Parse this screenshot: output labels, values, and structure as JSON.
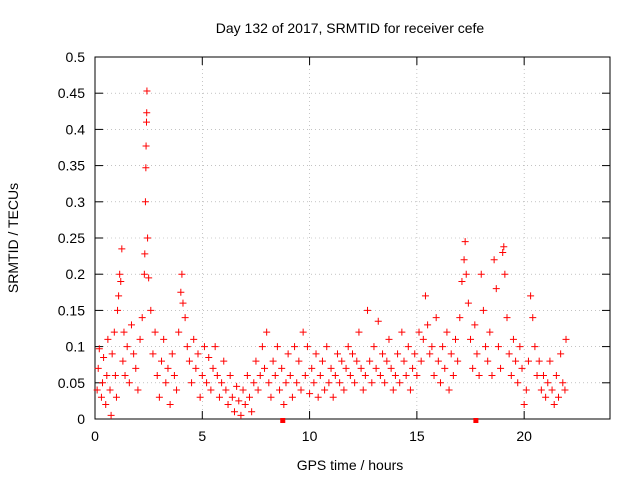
{
  "chart_data": {
    "type": "scatter",
    "title": "Day 132 of 2017, SRMTID for receiver cefe",
    "xlabel": "GPS time / hours",
    "ylabel": "SRMTID / TECUs",
    "xlim": [
      0,
      24
    ],
    "ylim": [
      0,
      0.5
    ],
    "x_ticks": [
      0,
      5,
      10,
      15,
      20
    ],
    "x_tick_labels": [
      "0",
      "5",
      "10",
      "15",
      "20"
    ],
    "y_ticks": [
      0,
      0.05,
      0.1,
      0.15,
      0.2,
      0.25,
      0.3,
      0.35,
      0.4,
      0.45,
      0.5
    ],
    "y_tick_labels": [
      "0",
      "0.05",
      "0.1",
      "0.15",
      "0.2",
      "0.25",
      "0.3",
      "0.35",
      "0.4",
      "0.45",
      "0.5"
    ],
    "grid": true,
    "marker": "+",
    "color": "#ff0000",
    "series": [
      {
        "name": "SRMTID",
        "points": [
          [
            0.1,
            0.04
          ],
          [
            0.15,
            0.07
          ],
          [
            0.2,
            0.097
          ],
          [
            0.3,
            0.03
          ],
          [
            0.35,
            0.05
          ],
          [
            0.4,
            0.085
          ],
          [
            0.5,
            0.02
          ],
          [
            0.55,
            0.06
          ],
          [
            0.6,
            0.11
          ],
          [
            0.7,
            0.04
          ],
          [
            0.75,
            0.005
          ],
          [
            0.8,
            0.09
          ],
          [
            0.9,
            0.12
          ],
          [
            0.95,
            0.06
          ],
          [
            1.0,
            0.03
          ],
          [
            1.05,
            0.15
          ],
          [
            1.1,
            0.17
          ],
          [
            1.15,
            0.2
          ],
          [
            1.2,
            0.19
          ],
          [
            1.25,
            0.235
          ],
          [
            1.3,
            0.08
          ],
          [
            1.35,
            0.12
          ],
          [
            1.4,
            0.06
          ],
          [
            1.5,
            0.1
          ],
          [
            1.6,
            0.05
          ],
          [
            1.7,
            0.13
          ],
          [
            1.8,
            0.09
          ],
          [
            1.9,
            0.07
          ],
          [
            2.0,
            0.04
          ],
          [
            2.1,
            0.11
          ],
          [
            2.2,
            0.14
          ],
          [
            2.3,
            0.2
          ],
          [
            2.32,
            0.228
          ],
          [
            2.35,
            0.3
          ],
          [
            2.37,
            0.347
          ],
          [
            2.38,
            0.377
          ],
          [
            2.4,
            0.41
          ],
          [
            2.41,
            0.423
          ],
          [
            2.42,
            0.453
          ],
          [
            2.45,
            0.25
          ],
          [
            2.5,
            0.195
          ],
          [
            2.6,
            0.15
          ],
          [
            2.7,
            0.09
          ],
          [
            2.8,
            0.12
          ],
          [
            2.9,
            0.06
          ],
          [
            3.0,
            0.03
          ],
          [
            3.1,
            0.08
          ],
          [
            3.2,
            0.11
          ],
          [
            3.3,
            0.05
          ],
          [
            3.4,
            0.07
          ],
          [
            3.5,
            0.02
          ],
          [
            3.6,
            0.09
          ],
          [
            3.7,
            0.06
          ],
          [
            3.8,
            0.04
          ],
          [
            3.9,
            0.12
          ],
          [
            4.0,
            0.175
          ],
          [
            4.05,
            0.2
          ],
          [
            4.1,
            0.16
          ],
          [
            4.2,
            0.14
          ],
          [
            4.3,
            0.1
          ],
          [
            4.4,
            0.08
          ],
          [
            4.5,
            0.05
          ],
          [
            4.6,
            0.11
          ],
          [
            4.7,
            0.07
          ],
          [
            4.8,
            0.09
          ],
          [
            4.9,
            0.03
          ],
          [
            5.0,
            0.06
          ],
          [
            5.1,
            0.1
          ],
          [
            5.2,
            0.05
          ],
          [
            5.3,
            0.085
          ],
          [
            5.4,
            0.04
          ],
          [
            5.5,
            0.07
          ],
          [
            5.6,
            0.1
          ],
          [
            5.7,
            0.06
          ],
          [
            5.8,
            0.03
          ],
          [
            5.9,
            0.05
          ],
          [
            6.0,
            0.08
          ],
          [
            6.1,
            0.04
          ],
          [
            6.2,
            0.02
          ],
          [
            6.3,
            0.06
          ],
          [
            6.4,
            0.03
          ],
          [
            6.5,
            0.01
          ],
          [
            6.6,
            0.045
          ],
          [
            6.7,
            0.025
          ],
          [
            6.8,
            0.005
          ],
          [
            6.9,
            0.04
          ],
          [
            7.0,
            0.02
          ],
          [
            7.1,
            0.06
          ],
          [
            7.2,
            0.03
          ],
          [
            7.3,
            0.01
          ],
          [
            7.4,
            0.05
          ],
          [
            7.5,
            0.08
          ],
          [
            7.6,
            0.04
          ],
          [
            7.7,
            0.06
          ],
          [
            7.8,
            0.1
          ],
          [
            7.9,
            0.07
          ],
          [
            8.0,
            0.12
          ],
          [
            8.1,
            0.05
          ],
          [
            8.2,
            0.03
          ],
          [
            8.3,
            0.08
          ],
          [
            8.4,
            0.06
          ],
          [
            8.5,
            0.1
          ],
          [
            8.6,
            0.04
          ],
          [
            8.7,
            0.07
          ],
          [
            8.8,
            0.02
          ],
          [
            8.9,
            0.05
          ],
          [
            9.0,
            0.09
          ],
          [
            9.1,
            0.06
          ],
          [
            9.2,
            0.03
          ],
          [
            9.3,
            0.1
          ],
          [
            9.4,
            0.05
          ],
          [
            9.5,
            0.08
          ],
          [
            9.6,
            0.04
          ],
          [
            9.7,
            0.12
          ],
          [
            9.8,
            0.06
          ],
          [
            9.9,
            0.1
          ],
          [
            10.0,
            0.035
          ],
          [
            10.1,
            0.07
          ],
          [
            10.2,
            0.05
          ],
          [
            10.3,
            0.09
          ],
          [
            10.4,
            0.03
          ],
          [
            10.5,
            0.06
          ],
          [
            10.6,
            0.08
          ],
          [
            10.7,
            0.04
          ],
          [
            10.8,
            0.1
          ],
          [
            10.9,
            0.05
          ],
          [
            11.0,
            0.07
          ],
          [
            11.1,
            0.03
          ],
          [
            11.2,
            0.06
          ],
          [
            11.3,
            0.09
          ],
          [
            11.4,
            0.05
          ],
          [
            11.5,
            0.08
          ],
          [
            11.6,
            0.04
          ],
          [
            11.7,
            0.07
          ],
          [
            11.8,
            0.1
          ],
          [
            11.9,
            0.06
          ],
          [
            12.0,
            0.09
          ],
          [
            12.1,
            0.05
          ],
          [
            12.2,
            0.08
          ],
          [
            12.3,
            0.12
          ],
          [
            12.4,
            0.07
          ],
          [
            12.5,
            0.04
          ],
          [
            12.6,
            0.06
          ],
          [
            12.7,
            0.15
          ],
          [
            12.8,
            0.08
          ],
          [
            12.9,
            0.05
          ],
          [
            13.0,
            0.1
          ],
          [
            13.1,
            0.07
          ],
          [
            13.2,
            0.135
          ],
          [
            13.3,
            0.06
          ],
          [
            13.4,
            0.09
          ],
          [
            13.5,
            0.05
          ],
          [
            13.6,
            0.08
          ],
          [
            13.7,
            0.11
          ],
          [
            13.8,
            0.07
          ],
          [
            13.9,
            0.04
          ],
          [
            14.0,
            0.06
          ],
          [
            14.1,
            0.09
          ],
          [
            14.2,
            0.05
          ],
          [
            14.3,
            0.12
          ],
          [
            14.4,
            0.08
          ],
          [
            14.5,
            0.06
          ],
          [
            14.6,
            0.1
          ],
          [
            14.7,
            0.04
          ],
          [
            14.8,
            0.07
          ],
          [
            14.9,
            0.09
          ],
          [
            15.0,
            0.06
          ],
          [
            15.1,
            0.12
          ],
          [
            15.2,
            0.08
          ],
          [
            15.3,
            0.11
          ],
          [
            15.4,
            0.17
          ],
          [
            15.5,
            0.13
          ],
          [
            15.6,
            0.09
          ],
          [
            15.7,
            0.1
          ],
          [
            15.8,
            0.06
          ],
          [
            15.9,
            0.14
          ],
          [
            16.0,
            0.08
          ],
          [
            16.1,
            0.05
          ],
          [
            16.2,
            0.1
          ],
          [
            16.3,
            0.07
          ],
          [
            16.4,
            0.12
          ],
          [
            16.5,
            0.04
          ],
          [
            16.6,
            0.09
          ],
          [
            16.7,
            0.06
          ],
          [
            16.8,
            0.11
          ],
          [
            16.9,
            0.08
          ],
          [
            17.0,
            0.14
          ],
          [
            17.1,
            0.19
          ],
          [
            17.2,
            0.22
          ],
          [
            17.25,
            0.245
          ],
          [
            17.3,
            0.2
          ],
          [
            17.4,
            0.16
          ],
          [
            17.5,
            0.11
          ],
          [
            17.6,
            0.07
          ],
          [
            17.7,
            0.13
          ],
          [
            17.8,
            0.09
          ],
          [
            17.9,
            0.06
          ],
          [
            18.0,
            0.2
          ],
          [
            18.1,
            0.15
          ],
          [
            18.2,
            0.1
          ],
          [
            18.3,
            0.08
          ],
          [
            18.4,
            0.12
          ],
          [
            18.5,
            0.06
          ],
          [
            18.6,
            0.22
          ],
          [
            18.7,
            0.18
          ],
          [
            18.8,
            0.1
          ],
          [
            18.9,
            0.07
          ],
          [
            19.0,
            0.23
          ],
          [
            19.05,
            0.238
          ],
          [
            19.1,
            0.2
          ],
          [
            19.2,
            0.14
          ],
          [
            19.3,
            0.09
          ],
          [
            19.4,
            0.06
          ],
          [
            19.5,
            0.11
          ],
          [
            19.6,
            0.08
          ],
          [
            19.7,
            0.05
          ],
          [
            19.8,
            0.1
          ],
          [
            19.9,
            0.07
          ],
          [
            20.0,
            0.02
          ],
          [
            20.1,
            0.04
          ],
          [
            20.2,
            0.08
          ],
          [
            20.3,
            0.17
          ],
          [
            20.4,
            0.14
          ],
          [
            20.5,
            0.1
          ],
          [
            20.6,
            0.06
          ],
          [
            20.7,
            0.08
          ],
          [
            20.8,
            0.04
          ],
          [
            20.9,
            0.06
          ],
          [
            21.0,
            0.03
          ],
          [
            21.1,
            0.05
          ],
          [
            21.2,
            0.08
          ],
          [
            21.3,
            0.04
          ],
          [
            21.4,
            0.02
          ],
          [
            21.5,
            0.06
          ],
          [
            21.6,
            0.03
          ],
          [
            21.7,
            0.09
          ],
          [
            21.8,
            0.05
          ],
          [
            21.9,
            0.04
          ],
          [
            21.95,
            0.11
          ]
        ]
      }
    ],
    "axis_markers_x": [
      8.75,
      17.75
    ]
  }
}
